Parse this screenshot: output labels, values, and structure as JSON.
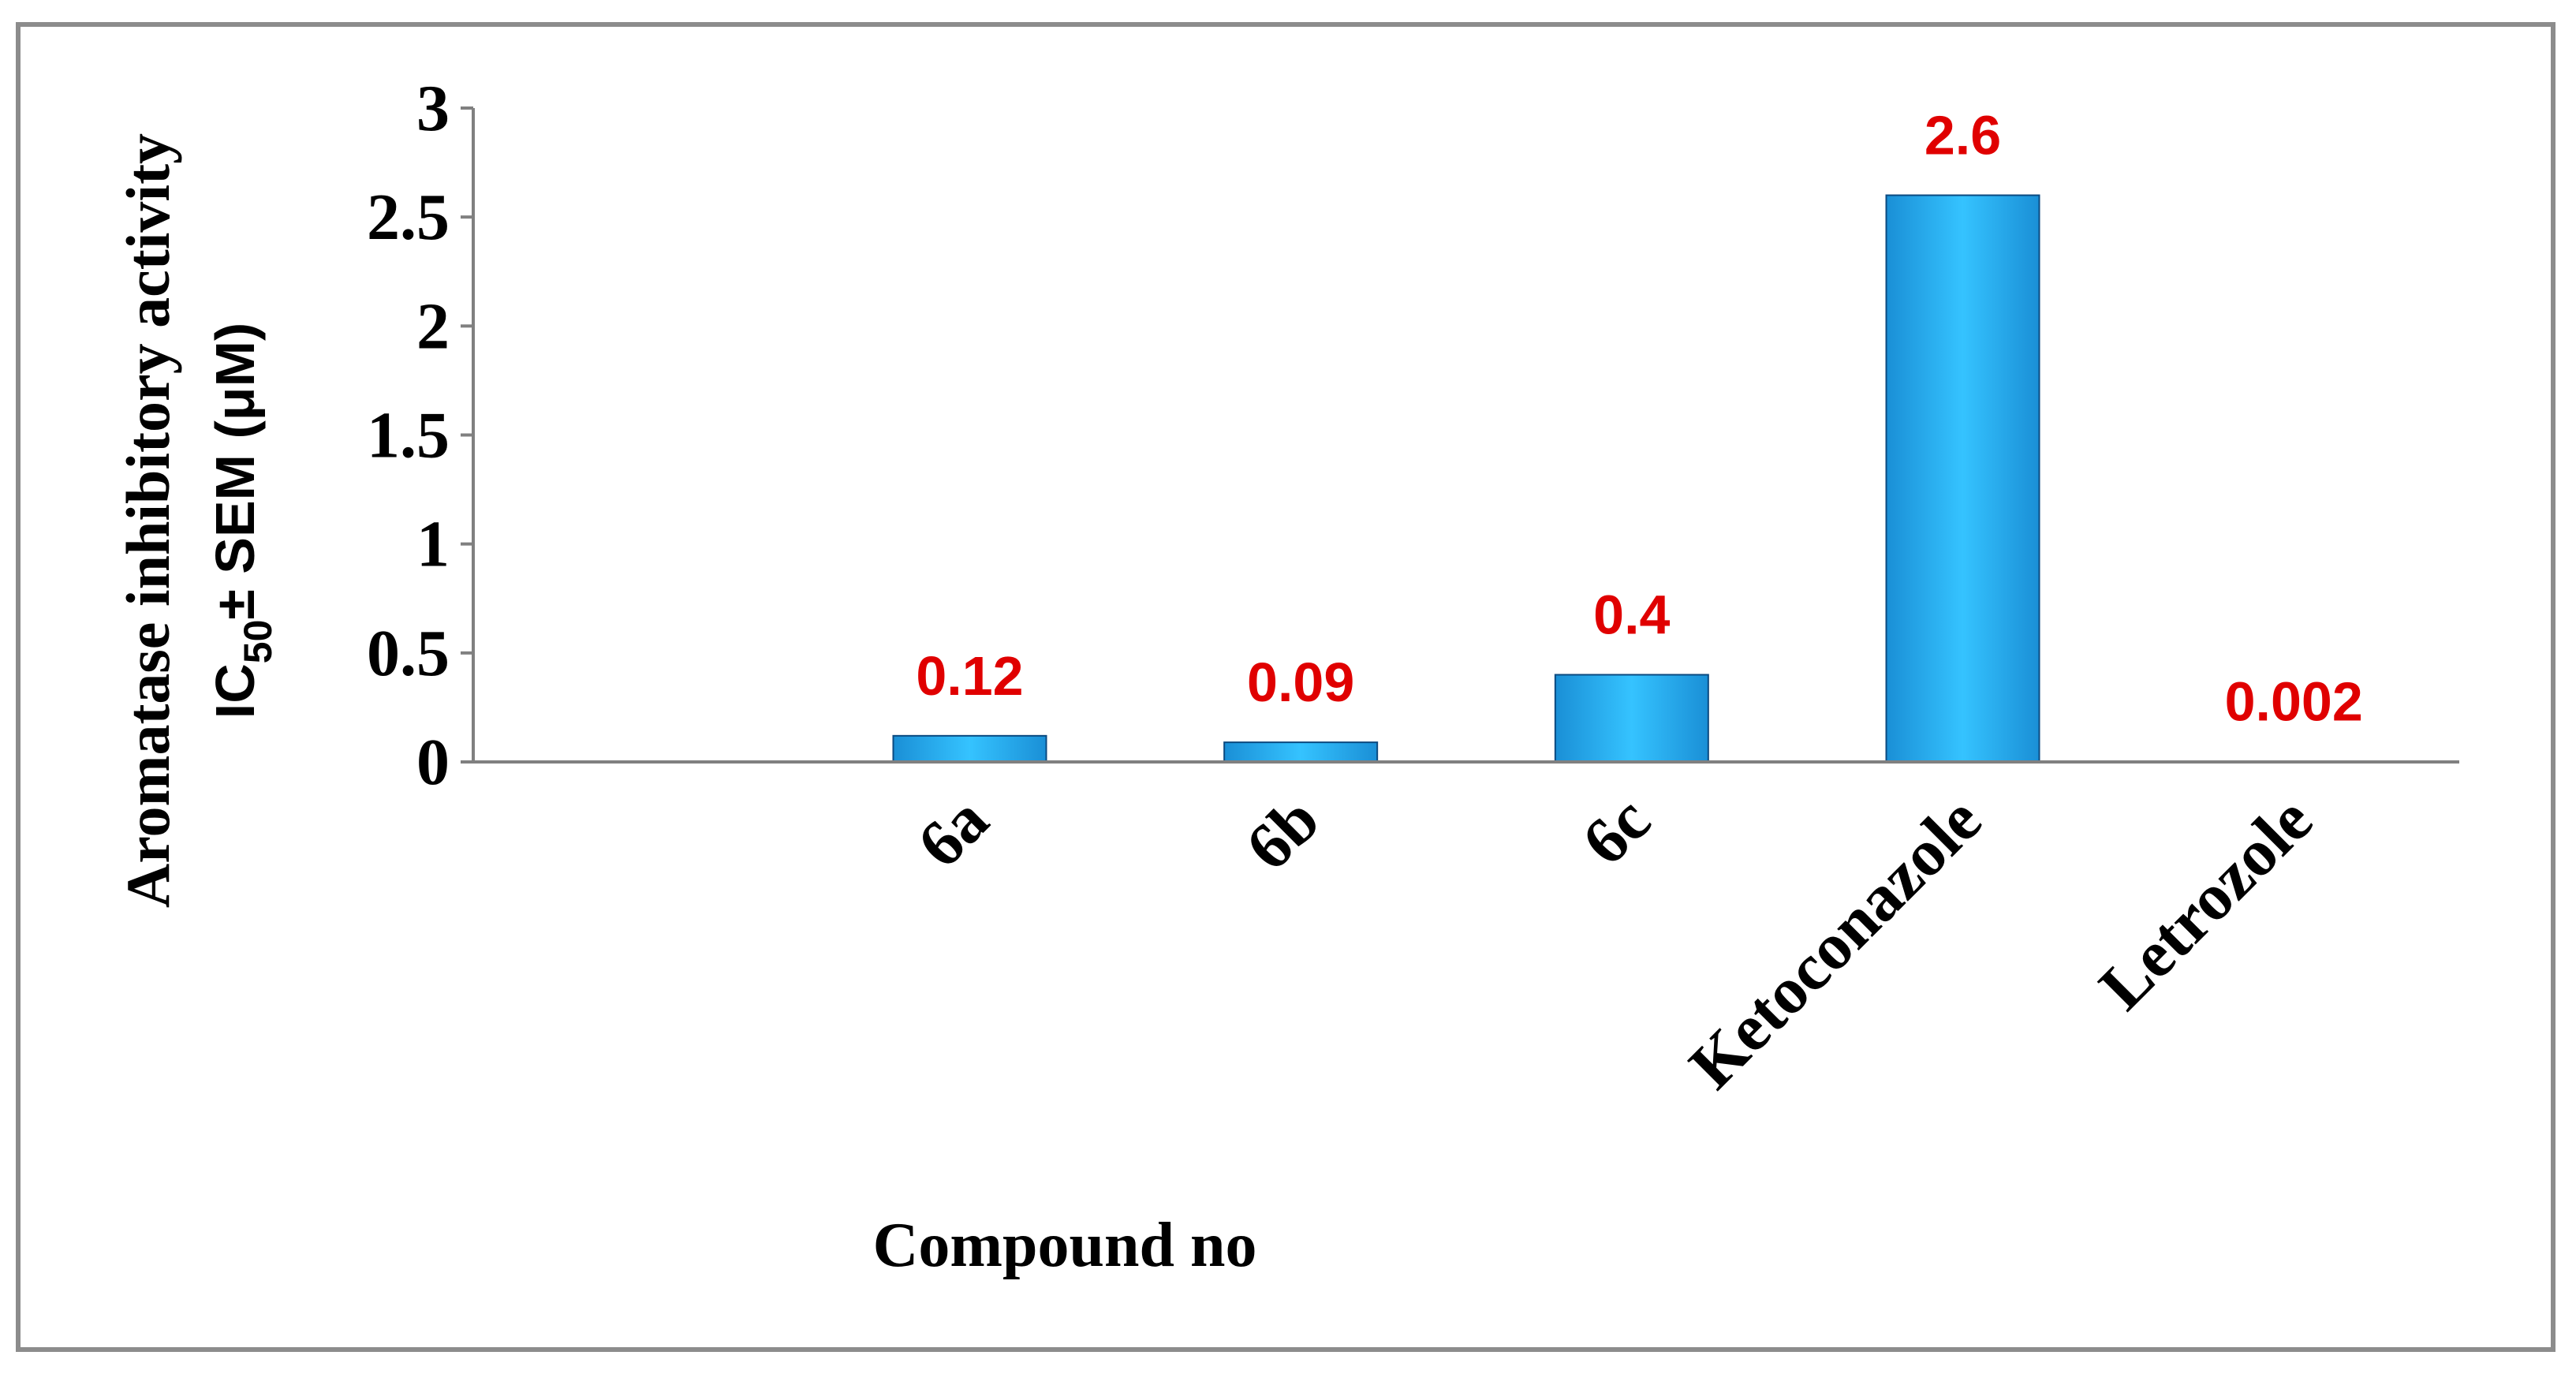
{
  "chart_data": {
    "type": "bar",
    "categories": [
      "",
      "6a",
      "6b",
      "6c",
      "Ketoconazole",
      "Letrozole"
    ],
    "values": [
      null,
      0.12,
      0.09,
      0.4,
      2.6,
      0.002
    ],
    "data_labels": [
      "",
      "0.12",
      "0.09",
      "0.4",
      "2.6",
      "0.002"
    ],
    "ylim": [
      0,
      3
    ],
    "yticks": [
      0,
      0.5,
      1,
      1.5,
      2,
      2.5,
      3
    ],
    "ytick_labels": [
      "0",
      "0.5",
      "1",
      "1.5",
      "2",
      "2.5",
      "3"
    ],
    "xlabel": "Compound no",
    "ylabel_line1": "Aromatase inhibitory activity",
    "ylabel_line2_prefix": "IC",
    "ylabel_line2_sub": "50",
    "ylabel_line2_suffix": "± SEM (μM)",
    "grid": false,
    "legend": "none",
    "bar_color": "#1a8fd6",
    "bar_highlight_color": "#35c3ff",
    "bar_edge_color": "#0b4a80",
    "data_label_color": "#e00000"
  }
}
